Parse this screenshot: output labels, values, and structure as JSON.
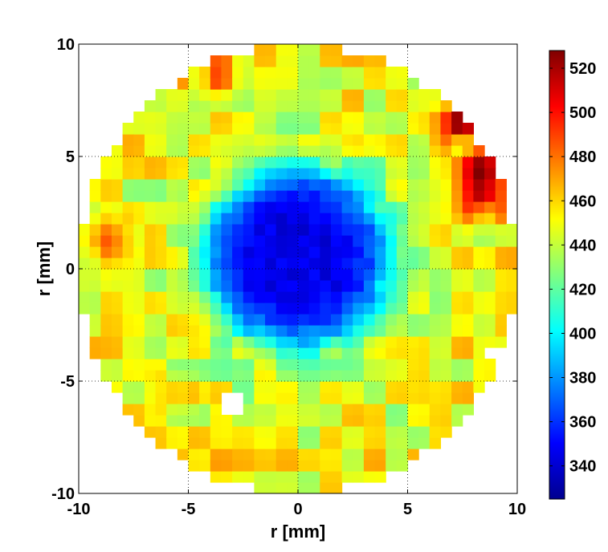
{
  "chart_data": {
    "type": "heatmap",
    "title": "",
    "xlabel": "r [mm]",
    "ylabel": "r [mm]",
    "xlim": [
      -10,
      10
    ],
    "ylim": [
      -10,
      10
    ],
    "x_ticks": [
      -10,
      -5,
      0,
      5,
      10
    ],
    "y_ticks": [
      -10,
      -5,
      0,
      5,
      10
    ],
    "x_tick_labels": [
      "-10",
      "-5",
      "0",
      "5",
      "10"
    ],
    "y_tick_labels": [
      "-10",
      "-5",
      "0",
      "5",
      "10"
    ],
    "grid": "dotted",
    "colormap": "jet",
    "colorbar": {
      "position": "right",
      "min": 325,
      "max": 528,
      "ticks": [
        340,
        360,
        380,
        400,
        420,
        440,
        460,
        480,
        500,
        520
      ],
      "tick_labels": [
        "340",
        "360",
        "380",
        "400",
        "420",
        "440",
        "460",
        "480",
        "500",
        "520"
      ]
    },
    "field": {
      "outer_radius_mm": 10,
      "central_min_value": 345,
      "central_spot_center_mm": [
        0,
        0.5
      ],
      "central_spot_radius_mm": 4.2,
      "background_value": 440,
      "hot_spots": [
        {
          "x": 7.3,
          "y": 6.5,
          "value": 495
        },
        {
          "x": 8.3,
          "y": 4.5,
          "value": 505
        },
        {
          "x": 8.3,
          "y": 3.0,
          "value": 490
        },
        {
          "x": -8.7,
          "y": 1.3,
          "value": 480
        },
        {
          "x": -3.8,
          "y": 8.5,
          "value": 470
        },
        {
          "x": -5.5,
          "y": -5.5,
          "value": 462
        }
      ],
      "missing_cells": [
        {
          "x": -2.9,
          "y": -6.0
        },
        {
          "x": 9.0,
          "y": -3.7
        }
      ]
    }
  }
}
